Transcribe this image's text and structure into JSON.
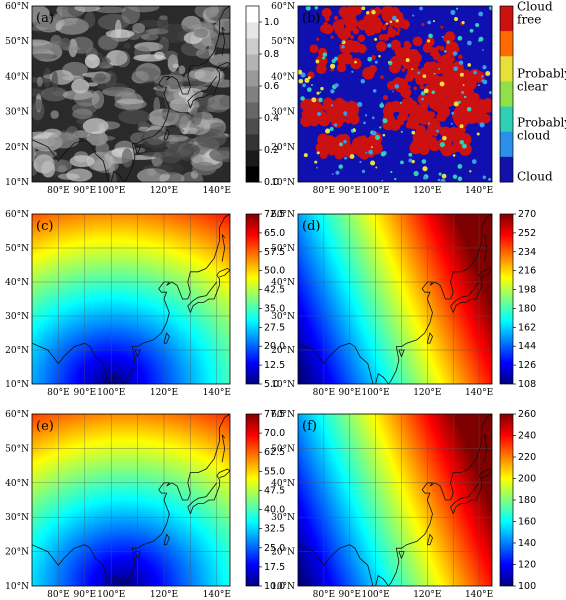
{
  "figure": {
    "lat_labels": [
      "10°N",
      "20°N",
      "30°N",
      "40°N",
      "50°N",
      "60°N"
    ],
    "lon_labels": [
      "80°E",
      "90°E",
      "100°E",
      "120°E",
      "140°E"
    ]
  },
  "chart_data": [
    {
      "panel": "(a)",
      "type": "heatmap",
      "title": "",
      "description_values": "grayscale satellite reflectance image",
      "xlim": [
        70,
        145
      ],
      "ylim": [
        10,
        60
      ],
      "colorbar": {
        "ticks": [
          "0.0",
          "0.2",
          "0.4",
          "0.6",
          "0.8",
          "1.0"
        ],
        "range": [
          0,
          1.1
        ],
        "colors": [
          "#000000",
          "#ffffff"
        ]
      }
    },
    {
      "panel": "(b)",
      "type": "heatmap",
      "title": "",
      "xlim": [
        70,
        145
      ],
      "ylim": [
        10,
        60
      ],
      "colorbar": {
        "categories": [
          "Cloud free",
          "Probably clear",
          "Probably cloud",
          "Cloud"
        ],
        "colors": [
          "#cc1111",
          "#e7e03a",
          "#2fd0b4",
          "#1212a8"
        ]
      }
    },
    {
      "panel": "(c)",
      "type": "heatmap",
      "title": "",
      "xlim": [
        70,
        145
      ],
      "ylim": [
        10,
        60
      ],
      "minimum_at": [
        100,
        10
      ],
      "value_range": [
        5,
        72.5
      ],
      "colorbar": {
        "ticks": [
          "5.0",
          "12.5",
          "20.0",
          "27.5",
          "35.0",
          "42.5",
          "50.0",
          "57.5",
          "65.0",
          "72.5"
        ],
        "range": [
          5,
          72.5
        ]
      }
    },
    {
      "panel": "(d)",
      "type": "heatmap",
      "title": "",
      "xlim": [
        70,
        145
      ],
      "ylim": [
        10,
        60
      ],
      "gradient": "increasing eastward",
      "value_range": [
        108,
        270
      ],
      "colorbar": {
        "ticks": [
          "108",
          "126",
          "144",
          "162",
          "180",
          "198",
          "216",
          "234",
          "252",
          "270"
        ],
        "range": [
          108,
          270
        ]
      }
    },
    {
      "panel": "(e)",
      "type": "heatmap",
      "title": "",
      "xlim": [
        70,
        145
      ],
      "ylim": [
        10,
        60
      ],
      "minimum_at": [
        105,
        10
      ],
      "value_range": [
        10,
        77.5
      ],
      "colorbar": {
        "ticks": [
          "10.0",
          "17.5",
          "25.0",
          "32.5",
          "40.0",
          "47.5",
          "55.0",
          "62.5",
          "70.0",
          "77.5"
        ],
        "range": [
          10,
          77.5
        ]
      }
    },
    {
      "panel": "(f)",
      "type": "heatmap",
      "title": "",
      "xlim": [
        70,
        145
      ],
      "ylim": [
        10,
        60
      ],
      "gradient": "increasing eastward",
      "value_range": [
        100,
        260
      ],
      "colorbar": {
        "ticks": [
          "100",
          "120",
          "140",
          "160",
          "180",
          "200",
          "220",
          "240",
          "260"
        ],
        "range": [
          100,
          260
        ]
      }
    }
  ],
  "colors": {
    "jet": [
      "#00007f",
      "#0000ff",
      "#007fff",
      "#00ffff",
      "#7fff7f",
      "#ffff00",
      "#ff7f00",
      "#ff0000",
      "#7f0000"
    ]
  }
}
